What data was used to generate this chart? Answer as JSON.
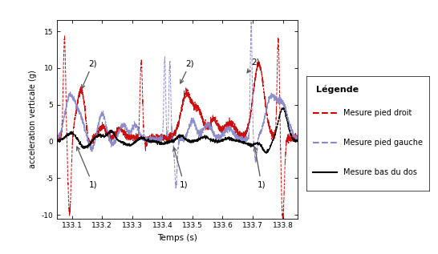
{
  "title": "",
  "xlabel": "Temps (s)",
  "ylabel": "acceleration verticale (g)",
  "xlim": [
    133.05,
    133.85
  ],
  "ylim": [
    -10.5,
    16.5
  ],
  "xticks": [
    133.1,
    133.2,
    133.3,
    133.4,
    133.5,
    133.6,
    133.7,
    133.8
  ],
  "yticks": [
    -10,
    -5,
    0,
    5,
    10,
    15
  ],
  "legend_title": "Légende",
  "legend_entries": [
    "Mesure pied droit",
    "Mesure pied gauche",
    "Mesure bas du dos"
  ],
  "red_color": "#cc0000",
  "blue_color": "#8888cc",
  "black_color": "#000000",
  "background_color": "#ffffff",
  "grid": false,
  "figsize": [
    5.46,
    3.17
  ],
  "dpi": 100
}
